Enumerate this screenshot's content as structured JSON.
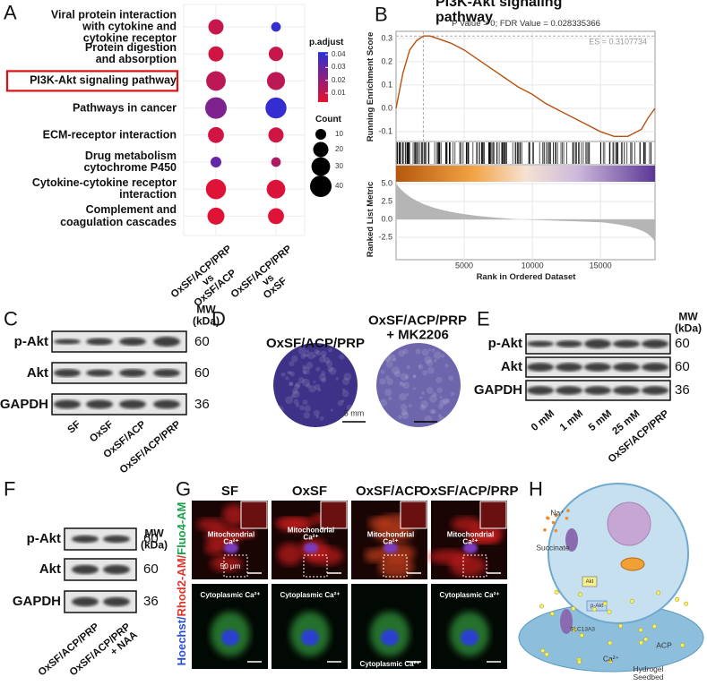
{
  "panel_labels": [
    "A",
    "B",
    "C",
    "D",
    "E",
    "F",
    "G",
    "H"
  ],
  "chart_data": [
    {
      "type": "dot",
      "categories": [
        "Viral protein interaction\nwith cytokine and\ncytokine receptor",
        "Protein digestion\nand absorption",
        "PI3K-Akt signaling pathway",
        "Pathways in cancer",
        "ECM-receptor interaction",
        "Drug metabolism\ncytochrome P450",
        "Cytokine-cytokine receptor\ninteraction",
        "Complement and\ncoagulation cascades"
      ],
      "groups": [
        "OxSF/ACP/PRP\nvs\nOxSF/ACP",
        "OxSF/ACP/PRP\nvs\nOxSF"
      ],
      "count": [
        [
          20,
          20,
          33,
          40,
          22,
          10,
          35,
          25
        ],
        [
          8,
          18,
          28,
          38,
          20,
          8,
          30,
          22
        ]
      ],
      "p_adjust": [
        [
          0.01,
          0.008,
          0.012,
          0.025,
          0.008,
          0.03,
          0.005,
          0.005
        ],
        [
          0.04,
          0.01,
          0.012,
          0.04,
          0.008,
          0.015,
          0.006,
          0.005
        ]
      ],
      "color_title": "p.adjust",
      "color_ticks": [
        0.04,
        0.03,
        0.02,
        0.01
      ],
      "color_lim": [
        0.003,
        0.042
      ],
      "colors": [
        "#e8112d",
        "#2a2fd9"
      ],
      "size_title": "Count",
      "size_ticks": [
        10,
        20,
        30,
        40
      ]
    },
    {
      "type": "gsea",
      "title": "PI3K-Akt signaling pathway",
      "subtitle": "P Value = 0; FDR Value = 0.028335366",
      "annotation": "ES = 0.3107734",
      "ylabel": "Running Enrichment Score",
      "y2label": "Ranked List Metric",
      "xlabel": "Rank in Ordered Dataset",
      "x": [
        0,
        500,
        1000,
        1500,
        2000,
        2500,
        3000,
        4000,
        5000,
        6000,
        7000,
        8000,
        9000,
        10000,
        11000,
        12000,
        13000,
        14000,
        15000,
        16000,
        17000,
        18000,
        18500,
        19000
      ],
      "values": [
        0,
        0.15,
        0.25,
        0.29,
        0.31,
        0.31,
        0.3,
        0.28,
        0.25,
        0.21,
        0.17,
        0.13,
        0.09,
        0.06,
        0.02,
        -0.01,
        -0.04,
        -0.07,
        -0.1,
        -0.12,
        -0.12,
        -0.09,
        -0.04,
        0
      ],
      "color": "#b8520e",
      "xlim": [
        0,
        19000
      ],
      "ylim": [
        -0.142,
        0.33
      ],
      "yticks": [
        0.3,
        0.2,
        0.1,
        {
          "value": 0,
          "label": "0.0"
        },
        -0.1
      ],
      "y2lim": [
        -5.6,
        5.6
      ],
      "y2ticks": [
        {
          "value": 5,
          "label": "5.0"
        },
        2.5,
        {
          "value": 0,
          "label": "0.0"
        },
        -2.5
      ],
      "xticks": [
        5000,
        10000,
        15000
      ]
    }
  ],
  "panel_c": {
    "mw_label": "MW\n(kDa)",
    "rows": [
      "p-Akt",
      "Akt",
      "GAPDH"
    ],
    "mw": [
      "60",
      "60",
      "36"
    ],
    "lanes": [
      "SF",
      "OxSF",
      "OxSF/ACP",
      "OxSF/ACP/PRP"
    ]
  },
  "panel_d": {
    "groups": [
      "OxSF/ACP/PRP",
      "OxSF/ACP/PRP\n+ MK2206"
    ],
    "scale": "5 mm"
  },
  "panel_e": {
    "mw_label": "MW\n(kDa)",
    "rows": [
      "p-Akt",
      "Akt",
      "GAPDH"
    ],
    "mw": [
      "60",
      "60",
      "36"
    ],
    "lanes": [
      "0 mM",
      "1 mM",
      "5 mM",
      "25 mM",
      "OxSF/ACP/PRP"
    ]
  },
  "panel_f": {
    "mw_label": "MW\n(kDa)",
    "rows": [
      "p-Akt",
      "Akt",
      "GAPDH"
    ],
    "mw": [
      "60",
      "60",
      "36"
    ],
    "lanes": [
      "OxSF/ACP/PRP",
      "OxSF/ACP/PRP\n+ NAA"
    ]
  },
  "panel_g": {
    "columns": [
      "SF",
      "OxSF",
      "OxSF/ACP",
      "OxSF/ACP/PRP"
    ],
    "stain": [
      "Hoechst/",
      "Rhod2-AM/",
      "Fluo4-AM"
    ],
    "mito": [
      "Mitochondrial\nCa²⁺",
      "Mitochondrial\nCa²⁺",
      "Mitochondrial\nCa²⁺",
      "Mitochondrial\nCa²⁺"
    ],
    "cyto": [
      "Cytoplasmic Ca²⁺",
      "Cytoplasmic Ca²⁺",
      "Cytoplasmic Ca²⁺",
      "Cytoplasmic Ca²⁺"
    ],
    "scale": "50 μm"
  },
  "panel_h": {
    "na": "Na⁺",
    "succinate": "Succinate",
    "akt": "Akt",
    "pakt": "p-Akt",
    "transporter": "SLC13A3",
    "ca": "Ca²⁺",
    "acp": "ACP",
    "seedbed": "Hydrogel Seedbed"
  }
}
